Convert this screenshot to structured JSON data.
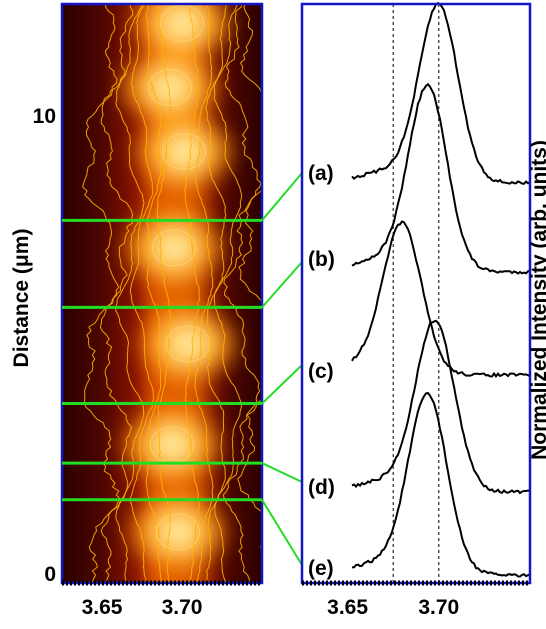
{
  "chart_data": [
    {
      "type": "heatmap",
      "title": "",
      "xlabel": "",
      "ylabel": "Distance (μm)",
      "xlim": [
        3.625,
        3.75
      ],
      "ylim": [
        0,
        11.2
      ],
      "x_ticks": [
        "3.65",
        "3.70"
      ],
      "x_tick_values": [
        3.65,
        3.7
      ],
      "y_ticks": [
        "0",
        "10"
      ],
      "y_tick_values": [
        0,
        10
      ],
      "colormap": [
        "#2a0000",
        "#6b0a00",
        "#a51d00",
        "#d84800",
        "#ef8a00",
        "#f8c030",
        "#ffe88a",
        "#fffbe0"
      ],
      "contour_color": "#ffb000",
      "peak_center_x": 3.7,
      "bright_spots_y": [
        0.9,
        2.8,
        5.0,
        7.1,
        9.2,
        10.6,
        12.0
      ],
      "cut_positions_y": [
        1.6,
        2.4,
        3.7,
        5.8,
        7.7
      ],
      "cut_line_color": "#22dd22"
    },
    {
      "type": "line",
      "title": "",
      "xlabel": "",
      "ylabel": "Normalized Intensity (arb. units)",
      "xlim": [
        3.625,
        3.75
      ],
      "x_ticks": [
        "3.65",
        "3.70"
      ],
      "x_tick_values": [
        3.65,
        3.7
      ],
      "reference_lines_x": [
        3.675,
        3.7
      ],
      "series": [
        {
          "name": "(a)",
          "peak": 3.7
        },
        {
          "name": "(b)",
          "peak": 3.694
        },
        {
          "name": "(c)",
          "peak": 3.68
        },
        {
          "name": "(d)",
          "peak": 3.698
        },
        {
          "name": "(e)",
          "peak": 3.694
        }
      ]
    }
  ]
}
